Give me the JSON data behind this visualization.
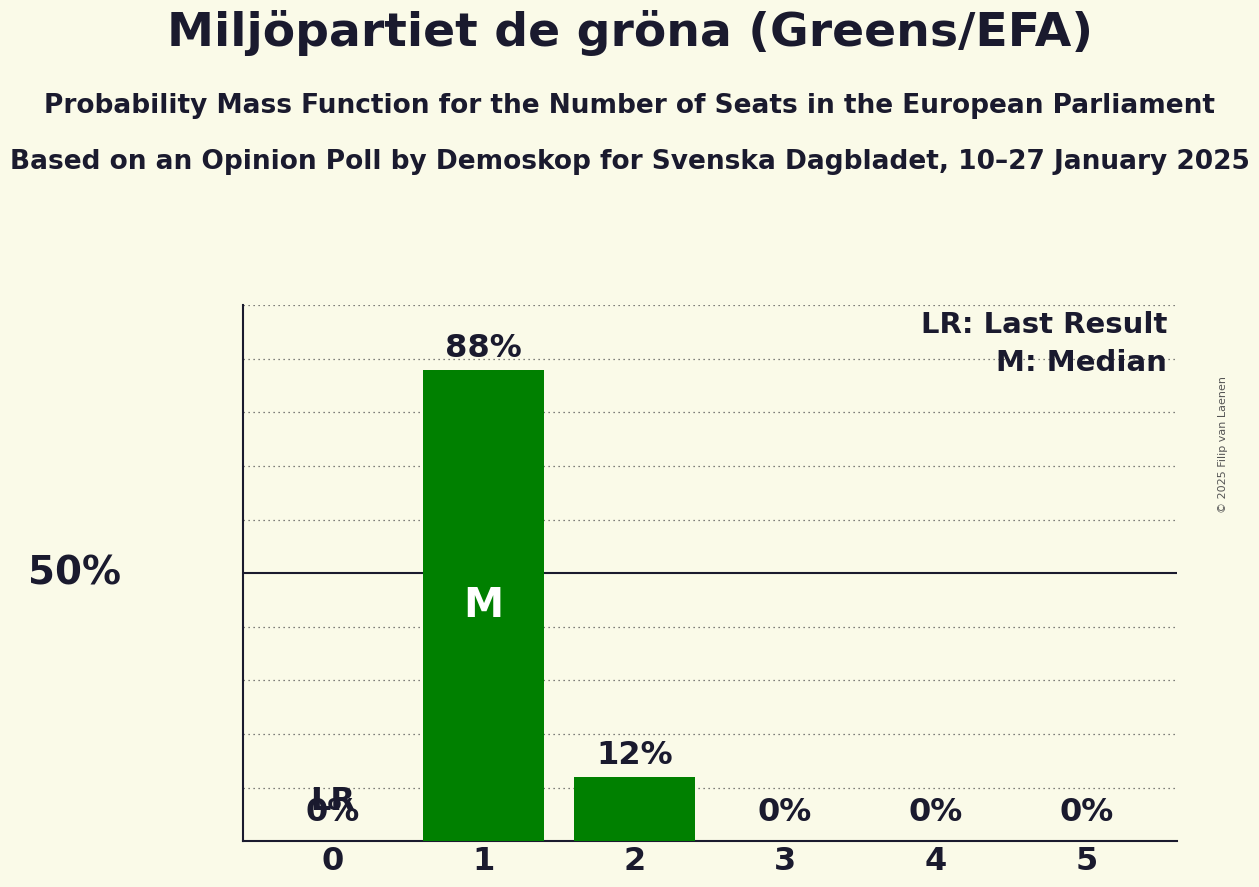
{
  "title": "Miljöpartiet de gröna (Greens/EFA)",
  "subtitle1": "Probability Mass Function for the Number of Seats in the European Parliament",
  "subtitle2": "Based on an Opinion Poll by Demoskop for Svenska Dagbladet, 10–27 January 2025",
  "copyright": "© 2025 Filip van Laenen",
  "seats": [
    0,
    1,
    2,
    3,
    4,
    5
  ],
  "probabilities": [
    0.0,
    0.88,
    0.12,
    0.0,
    0.0,
    0.0
  ],
  "bar_color": "#008000",
  "median_seat": 1,
  "last_result_seat": 0,
  "background_color": "#fafae8",
  "ylim": [
    0,
    1.0
  ],
  "n_grid_lines": 10,
  "legend_lr": "LR: Last Result",
  "legend_m": "M: Median",
  "title_fontsize": 34,
  "subtitle_fontsize": 19,
  "axis_label_fontsize": 23,
  "bar_label_fontsize": 23,
  "legend_fontsize": 21,
  "fifty_pct_fontsize": 28
}
